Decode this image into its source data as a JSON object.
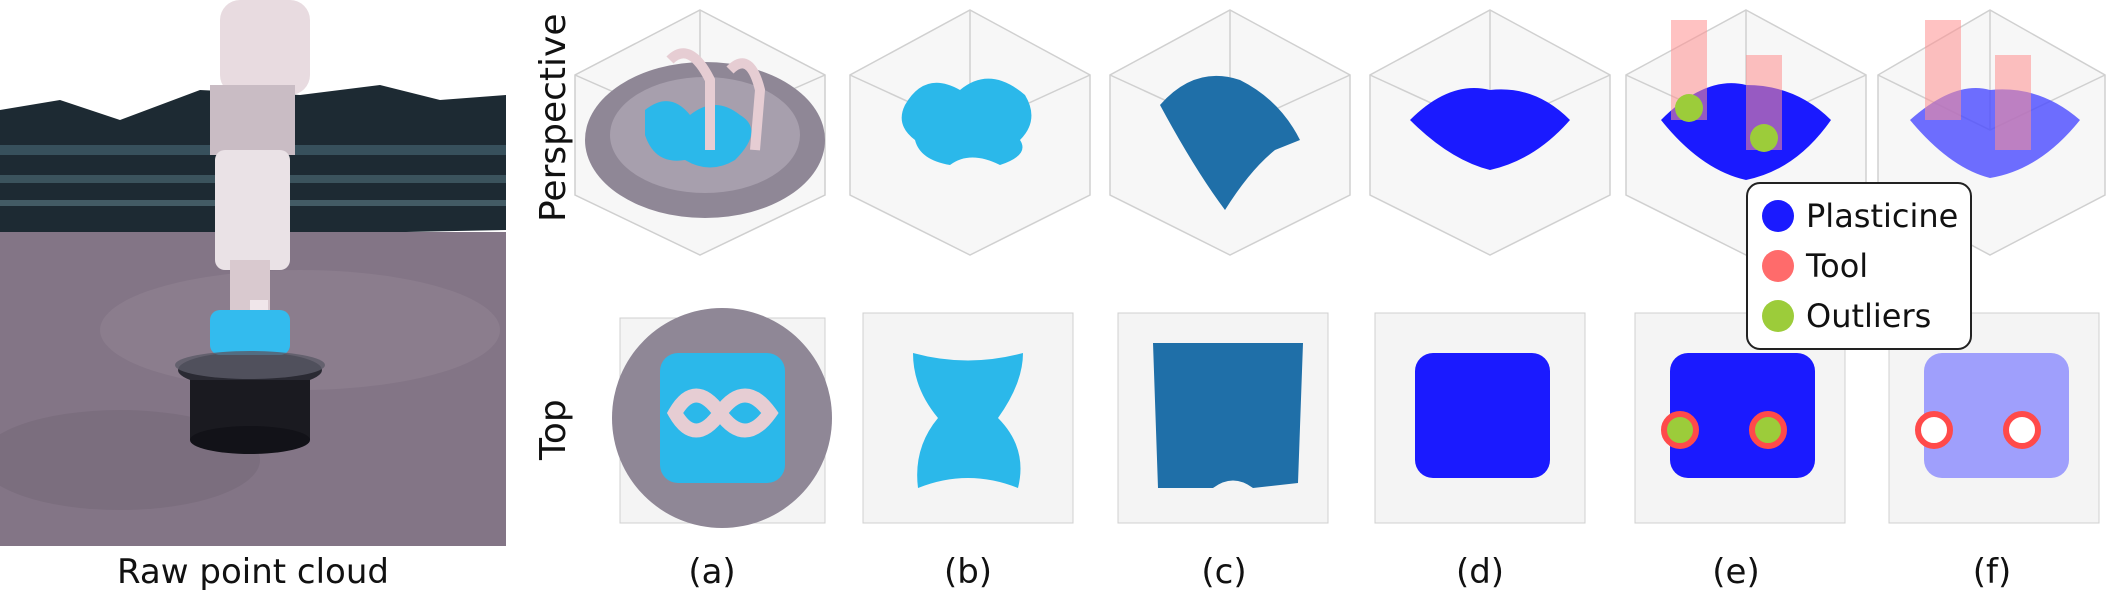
{
  "raw_caption": "Raw point cloud",
  "row_labels": {
    "perspective": "Perspective",
    "top": "Top"
  },
  "columns": [
    "(a)",
    "(b)",
    "(c)",
    "(d)",
    "(e)",
    "(f)"
  ],
  "legend": [
    {
      "label": "Plasticine",
      "color": "#1a1aff"
    },
    {
      "label": "Tool",
      "color": "#ff6b6b"
    },
    {
      "label": "Outliers",
      "color": "#9ccc3a"
    }
  ],
  "colors": {
    "plasticine_cyan": "#2bb8ea",
    "mesh_blue": "#1f6fa8",
    "points_blue": "#1a1aff",
    "tool_red": "#ff4a4a",
    "outlier_green": "#9ccc3a"
  }
}
